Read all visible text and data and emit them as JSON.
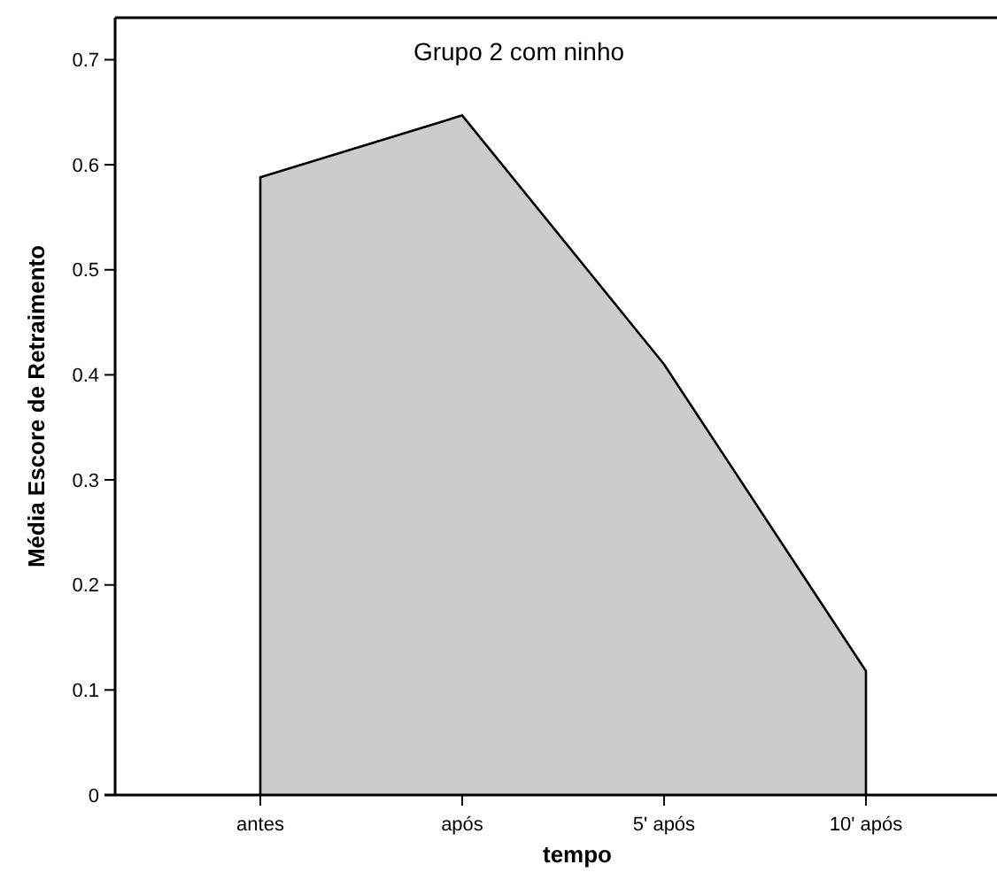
{
  "chart_data": {
    "type": "area",
    "title": "Grupo 2 com ninho",
    "xlabel": "tempo",
    "ylabel": "Média Escore de Retraimento",
    "categories": [
      "antes",
      "após",
      "5' após",
      "10' após"
    ],
    "series": [
      {
        "color": "#cccccc",
        "values": [
          0.588,
          0.647,
          0.41,
          0.118
        ]
      }
    ],
    "ylim": [
      0,
      0.74
    ],
    "yticks": [
      0,
      0.1,
      0.2,
      0.3,
      0.4,
      0.5,
      0.6,
      0.7
    ],
    "grid": false
  }
}
